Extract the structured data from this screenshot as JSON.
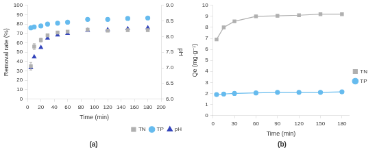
{
  "chart_data": [
    {
      "type": "scatter",
      "title": "(a)",
      "xlabel": "Time (min)",
      "ylabel": "Removal rate (%)",
      "y2label": "pH",
      "x": [
        5,
        10,
        20,
        30,
        45,
        60,
        90,
        120,
        150,
        180
      ],
      "series": [
        {
          "name": "TN",
          "color": "#b0b0b0",
          "marker": "square",
          "values": [
            35,
            56,
            63,
            68,
            71,
            72,
            74,
            73,
            73.5,
            73.5
          ],
          "errors": [
            4,
            3,
            2,
            1.5,
            1,
            1,
            1.5,
            1,
            1,
            1
          ]
        },
        {
          "name": "TP",
          "color": "#66bbee",
          "marker": "circle",
          "values": [
            76,
            77,
            78,
            80,
            81,
            82,
            85,
            85,
            86,
            86.5
          ],
          "errors": [
            1.5,
            1,
            1,
            1,
            1,
            1.5,
            1.5,
            1,
            1,
            1
          ]
        },
        {
          "name": "pH",
          "color": "#3344bb",
          "marker": "triangle",
          "axis": "y2",
          "values": [
            7.0,
            7.35,
            7.65,
            7.95,
            8.05,
            8.1,
            8.2,
            8.22,
            8.25,
            8.28
          ]
        }
      ],
      "xlim": [
        0,
        200
      ],
      "xticks": [
        0,
        20,
        40,
        60,
        80,
        100,
        120,
        140,
        160,
        180,
        200
      ],
      "ylim": [
        0,
        100
      ],
      "yticks": [
        0,
        10,
        20,
        30,
        40,
        50,
        60,
        70,
        80,
        90,
        100
      ],
      "y2lim": [
        6.0,
        9.0
      ],
      "y2ticks": [
        {
          "value": 6.0,
          "label": "6.0"
        },
        {
          "value": 6.5,
          "label": "6.5"
        },
        {
          "value": 7.0,
          "label": "7.0"
        },
        {
          "value": 7.5,
          "label": "7.5"
        },
        {
          "value": 8.0,
          "label": "8.0"
        },
        {
          "value": 8.5,
          "label": "8.5"
        },
        {
          "value": 9.0,
          "label": "9.0"
        }
      ],
      "legend": "lower right",
      "grid": false
    },
    {
      "type": "line",
      "title": "(b)",
      "xlabel": "Time (min)",
      "ylabel": "Qe (mg·g⁻¹)",
      "x": [
        5,
        15,
        30,
        60,
        90,
        120,
        150,
        180
      ],
      "series": [
        {
          "name": "TN",
          "color": "#b0b0b0",
          "marker": "square",
          "line_style": "solid",
          "values": [
            6.9,
            8.0,
            8.55,
            9.0,
            9.05,
            9.1,
            9.2,
            9.2
          ]
        },
        {
          "name": "TP",
          "color": "#66bbee",
          "marker": "circle",
          "line_style": "solid",
          "values": [
            1.9,
            1.95,
            2.0,
            2.05,
            2.1,
            2.1,
            2.1,
            2.15
          ]
        }
      ],
      "xlim": [
        0,
        190
      ],
      "xticks": [
        0,
        30,
        60,
        90,
        120,
        150,
        180
      ],
      "ylim": [
        0,
        10
      ],
      "yticks": [
        0,
        1,
        2,
        3,
        4,
        5,
        6,
        7,
        8,
        9,
        10
      ],
      "legend": "center right",
      "grid": false
    }
  ]
}
